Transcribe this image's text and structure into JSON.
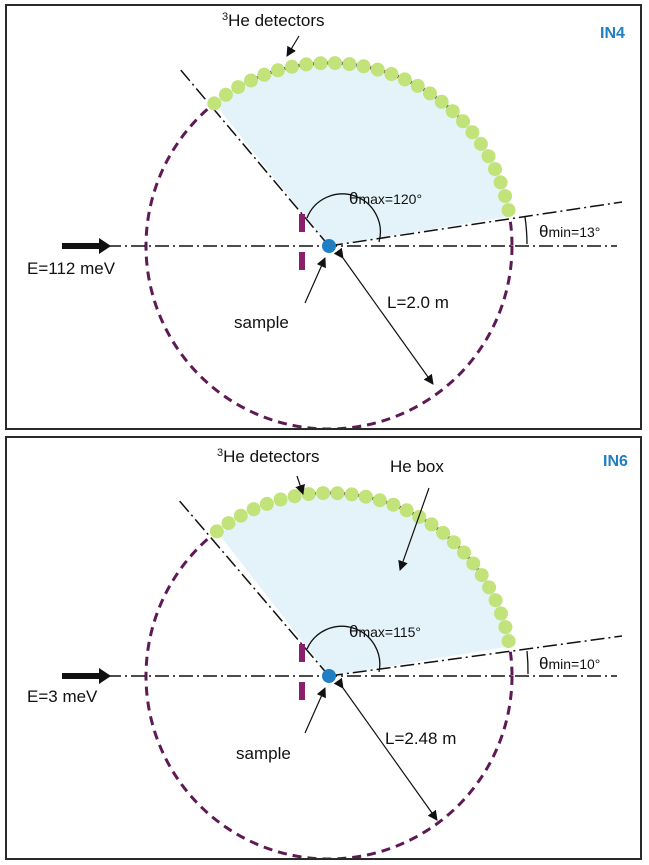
{
  "panels": [
    {
      "tag": "IN4",
      "detector_label": {
        "sup": "3",
        "main": "He detectors"
      },
      "energy": "E=112 meV",
      "sample": "sample",
      "distance": "L=2.0 m",
      "theta_max": {
        "symbol": "θ",
        "sub": "max",
        "value": "=120°"
      },
      "theta_min": {
        "symbol": "θ",
        "sub": "min",
        "value": "=13°"
      },
      "colors": {
        "circle": "#5e1a55",
        "detector": "#c2e27a",
        "fill": "#e4f3fa",
        "sample": "#1f7fc2",
        "shutter": "#8a1f6e"
      }
    },
    {
      "tag": "IN6",
      "detector_label": {
        "sup": "3",
        "main": "He detectors"
      },
      "box_label": "He box",
      "energy": "E=3 meV",
      "sample": "sample",
      "distance": "L=2.48 m",
      "theta_max": {
        "symbol": "θ",
        "sub": "max",
        "value": "=115°"
      },
      "theta_min": {
        "symbol": "θ",
        "sub": "min",
        "value": "=10°"
      },
      "colors": {
        "circle": "#5e1a55",
        "detector": "#c2e27a",
        "fill": "#e4f3fa",
        "sample": "#1f7fc2",
        "shutter": "#8a1f6e"
      }
    }
  ]
}
